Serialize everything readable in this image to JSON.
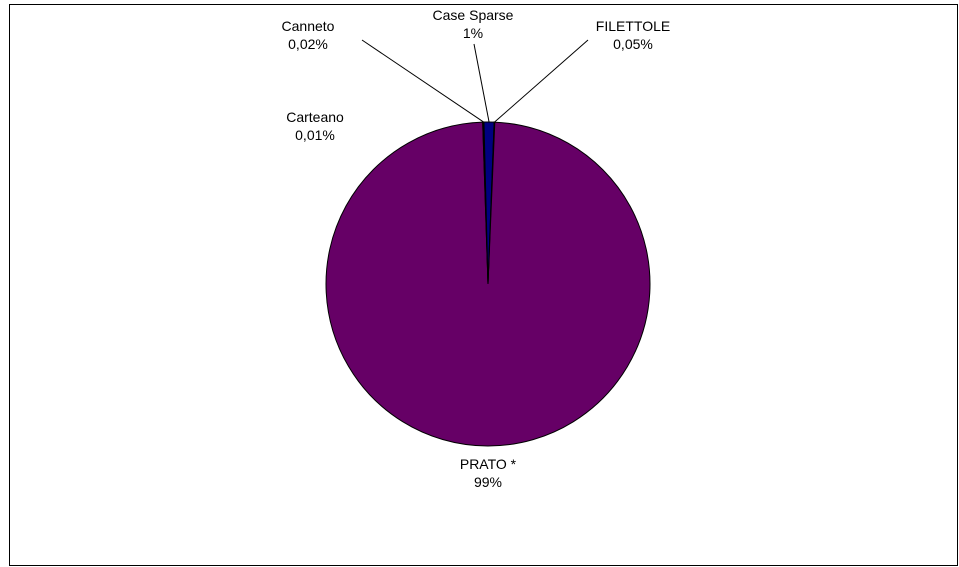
{
  "chart_data": {
    "type": "pie",
    "title": "",
    "slices": [
      {
        "name": "PRATO *",
        "value_label": "99%",
        "value": 98.92,
        "color": "#660066"
      },
      {
        "name": "Carteano",
        "value_label": "0,01%",
        "value": 0.01,
        "color": "#ffffcc"
      },
      {
        "name": "Canneto",
        "value_label": "0,02%",
        "value": 0.02,
        "color": "#ccffff"
      },
      {
        "name": "Case Sparse",
        "value_label": "1%",
        "value": 1.0,
        "color": "#000080"
      },
      {
        "name": "FILETTOLE",
        "value_label": "0,05%",
        "value": 0.05,
        "color": "#ffffcc"
      }
    ],
    "legend": "none"
  }
}
